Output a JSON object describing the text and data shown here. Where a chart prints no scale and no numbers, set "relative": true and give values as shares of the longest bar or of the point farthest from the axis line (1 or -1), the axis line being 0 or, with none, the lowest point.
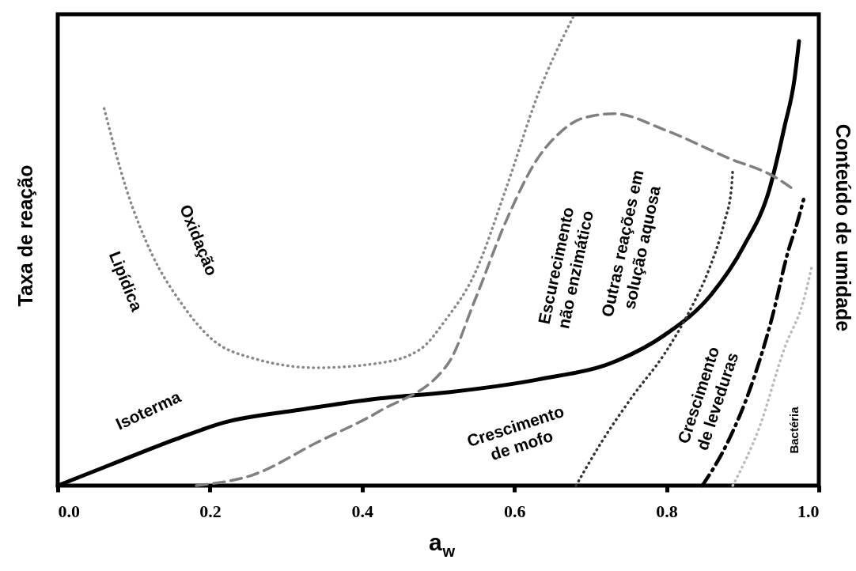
{
  "chart_data": {
    "type": "line",
    "relative": true,
    "xlabel": "a$_{w}$",
    "ylabel": "Taxa de reação",
    "y2label": "Conteúdo de umidade",
    "xlim": [
      0,
      1
    ],
    "xticks": [
      {
        "value": 0,
        "label": "0.0"
      },
      0.2,
      0.4,
      0.6,
      0.8,
      {
        "value": 1,
        "label": "1.0"
      }
    ],
    "tick_labels": "x",
    "grid": false,
    "series": [
      {
        "color": "#888888",
        "line_style": "dotted",
        "x": [
          0.061,
          0.09,
          0.124,
          0.161,
          0.203,
          0.257,
          0.34,
          0.423,
          0.477,
          0.509,
          0.548,
          0.589,
          0.631,
          0.679
        ],
        "values": [
          0.8,
          0.63,
          0.49,
          0.39,
          0.31,
          0.27,
          0.25,
          0.26,
          0.29,
          0.35,
          0.45,
          0.63,
          0.83,
          1.0
        ]
      },
      {
        "color": "#000000",
        "line_style": "solid",
        "x": [
          0,
          0.069,
          0.153,
          0.219,
          0.319,
          0.423,
          0.513,
          0.631,
          0.735,
          0.797,
          0.859,
          0.901,
          0.935,
          0.955,
          0.968,
          0.974
        ],
        "values": [
          0,
          0.044,
          0.097,
          0.134,
          0.161,
          0.185,
          0.198,
          0.225,
          0.265,
          0.319,
          0.406,
          0.507,
          0.628,
          0.762,
          0.862,
          0.943
        ]
      },
      {
        "color": "#808080",
        "line_style": "dashed",
        "x": [
          0.182,
          0.257,
          0.34,
          0.423,
          0.513,
          0.548,
          0.589,
          0.631,
          0.66,
          0.689,
          0.731,
          0.797,
          0.881,
          0.943,
          0.968
        ],
        "values": [
          0,
          0.023,
          0.091,
          0.158,
          0.259,
          0.393,
          0.561,
          0.695,
          0.749,
          0.779,
          0.789,
          0.755,
          0.695,
          0.654,
          0.627
        ]
      },
      {
        "color": "#333333",
        "line_style": "dotted",
        "x": [
          0.681,
          0.714,
          0.756,
          0.797,
          0.831,
          0.856,
          0.876,
          0.885,
          0.887
        ],
        "values": [
          0,
          0.091,
          0.191,
          0.279,
          0.373,
          0.46,
          0.56,
          0.628,
          0.674
        ]
      },
      {
        "color": "#000000",
        "line_style": "dashdot",
        "x": [
          0.847,
          0.88,
          0.914,
          0.939,
          0.959,
          0.972,
          0.98
        ],
        "values": [
          0,
          0.091,
          0.225,
          0.359,
          0.493,
          0.56,
          0.607
        ]
      },
      {
        "color": "#bbbbbb",
        "line_style": "dotted",
        "x": [
          0.887,
          0.922,
          0.955,
          0.98,
          0.991
        ],
        "values": [
          0,
          0.124,
          0.292,
          0.393,
          0.466
        ]
      }
    ],
    "annotations": [
      "Oxidação",
      "Lipídica",
      "Isoterma",
      "Escurecimento\nnão enzimático",
      "Outras reações  em\nsolução  aquosa",
      "Crescimento\nde mofo",
      "Crescimento\nde leveduras",
      "Bactéria"
    ]
  }
}
